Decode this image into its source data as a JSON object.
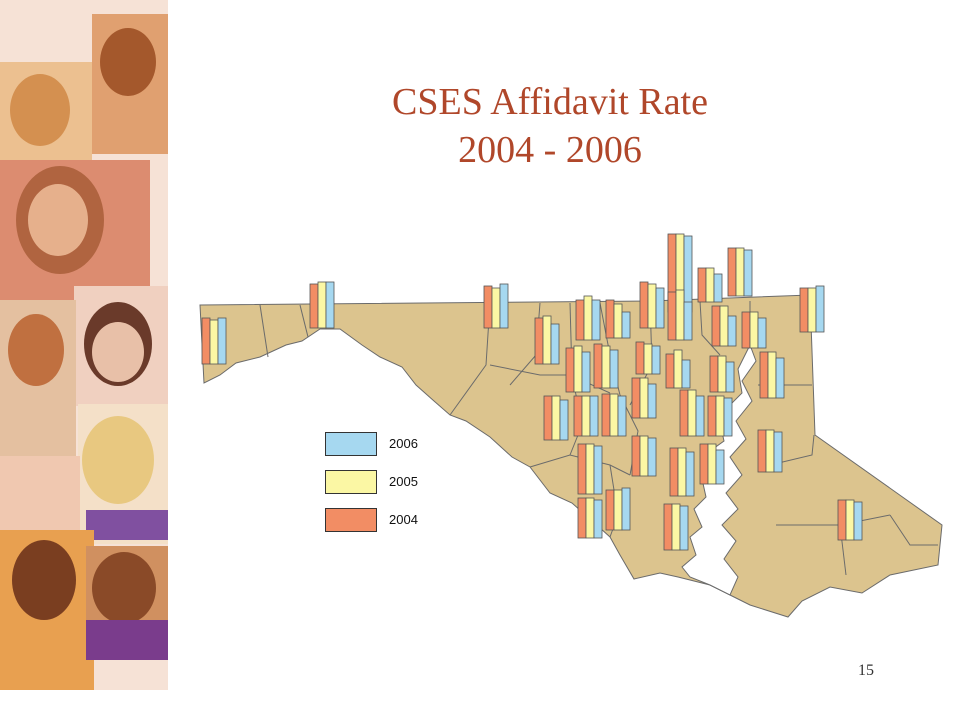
{
  "slide": {
    "title_line1": "CSES Affidavit Rate",
    "title_line2": "2004 - 2006",
    "page_number": "15"
  },
  "legend": {
    "items": [
      {
        "label": "2006",
        "color": "#a6d8f0"
      },
      {
        "label": "2005",
        "color": "#fbf7a4"
      },
      {
        "label": "2004",
        "color": "#f28d64"
      }
    ]
  },
  "colors": {
    "title": "#b0472a",
    "land": "#dcc48e",
    "border": "#6b6b6b",
    "water": "#ffffff"
  },
  "decorative_image": "collage of children's portraits",
  "map_subject": "Maryland counties with grouped bar glyphs"
}
